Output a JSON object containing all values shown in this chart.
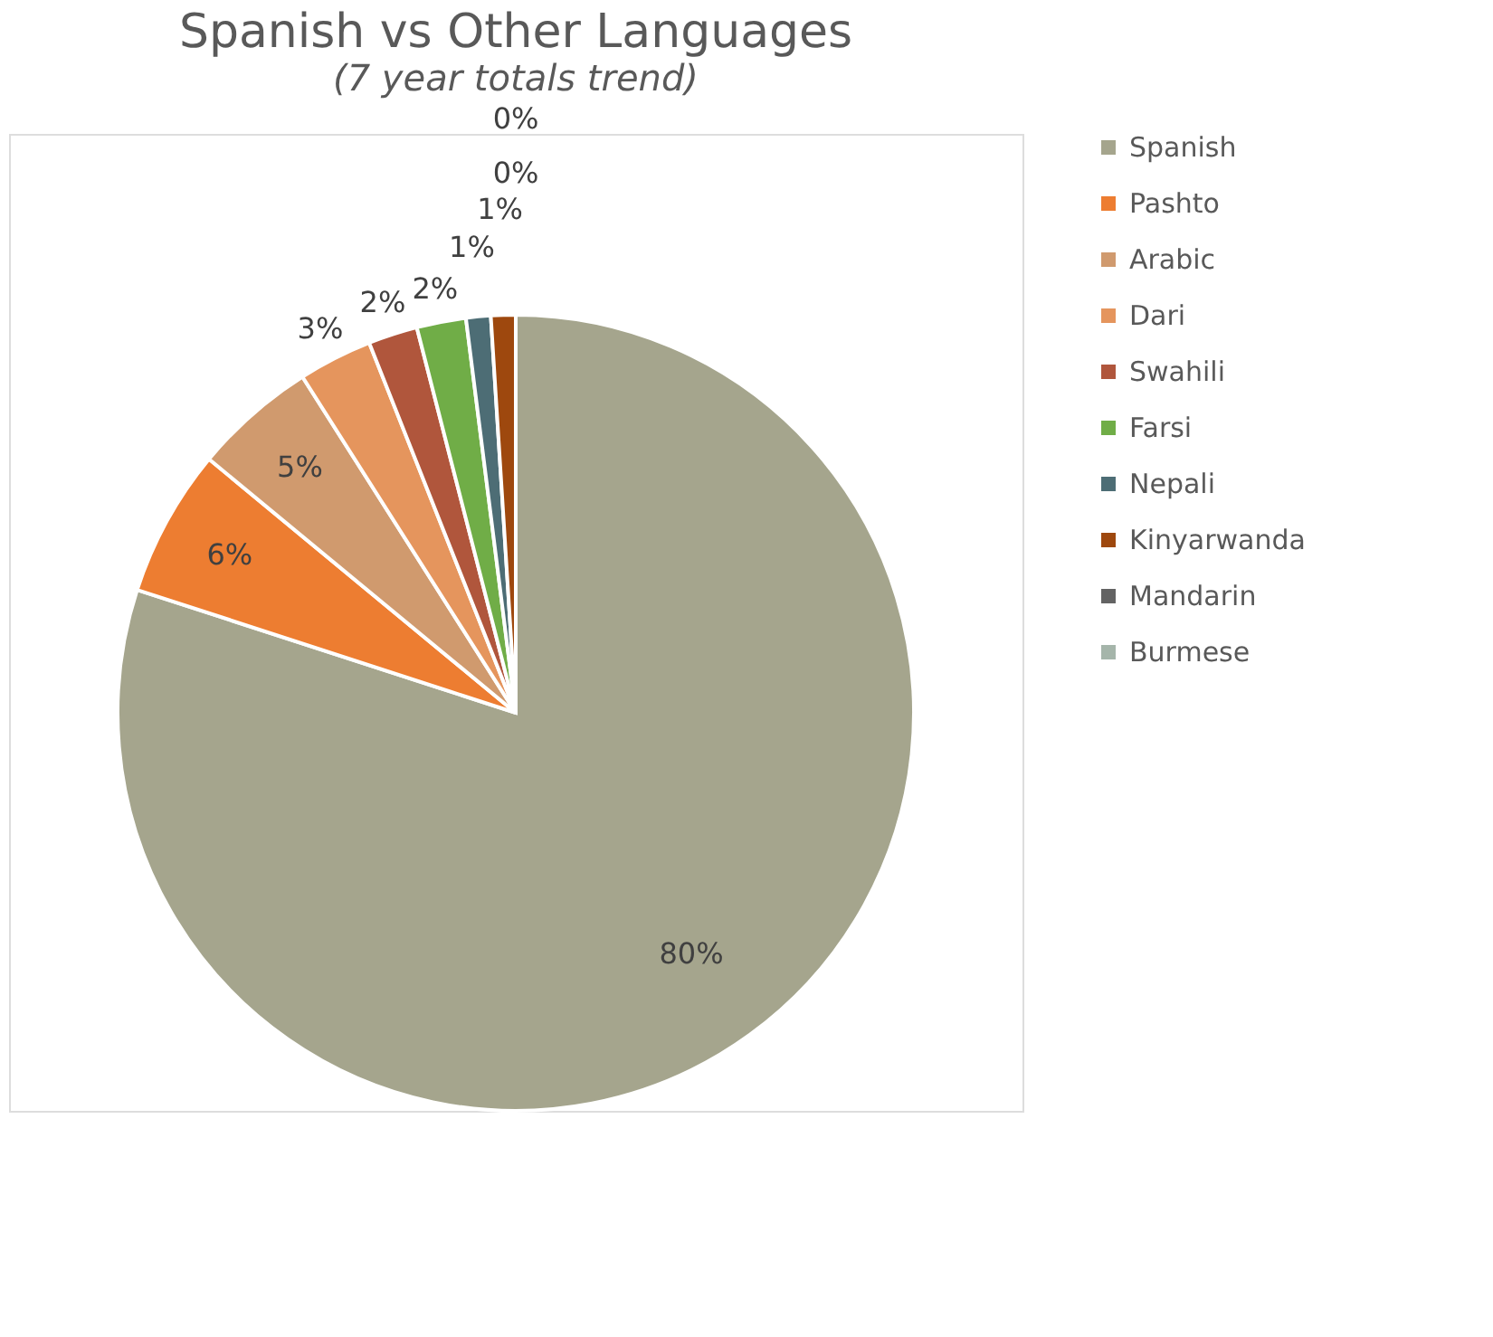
{
  "chart_data": {
    "type": "pie",
    "title": "Spanish vs Other Languages",
    "subtitle": "(7 year totals trend)",
    "categories": [
      "Spanish",
      "Pashto",
      "Arabic",
      "Dari",
      "Swahili",
      "Farsi",
      "Nepali",
      "Kinyarwanda",
      "Mandarin",
      "Burmese"
    ],
    "values": [
      80,
      6,
      5,
      3,
      2,
      2,
      1,
      1,
      0,
      0
    ],
    "value_labels": [
      "80%",
      "6%",
      "5%",
      "3%",
      "2%",
      "2%",
      "1%",
      "1%",
      "0%",
      "0%"
    ],
    "colors": [
      "#a5a58d",
      "#ed7d31",
      "#d09a6e",
      "#e5955d",
      "#b0563c",
      "#70ad47",
      "#4d6d75",
      "#9e480e",
      "#636363",
      "#a5b5aa"
    ],
    "legend": "right"
  }
}
